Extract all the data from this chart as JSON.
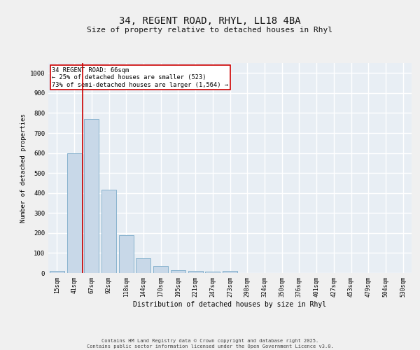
{
  "title_line1": "34, REGENT ROAD, RHYL, LL18 4BA",
  "title_line2": "Size of property relative to detached houses in Rhyl",
  "xlabel": "Distribution of detached houses by size in Rhyl",
  "ylabel": "Number of detached properties",
  "categories": [
    "15sqm",
    "41sqm",
    "67sqm",
    "92sqm",
    "118sqm",
    "144sqm",
    "170sqm",
    "195sqm",
    "221sqm",
    "247sqm",
    "273sqm",
    "298sqm",
    "324sqm",
    "350sqm",
    "376sqm",
    "401sqm",
    "427sqm",
    "453sqm",
    "479sqm",
    "504sqm",
    "530sqm"
  ],
  "values": [
    10,
    600,
    770,
    415,
    190,
    75,
    35,
    15,
    12,
    8,
    12,
    0,
    0,
    0,
    0,
    0,
    0,
    0,
    0,
    0,
    0
  ],
  "bar_color": "#c8d8e8",
  "bar_edge_color": "#7aaac8",
  "red_line_x": 1.5,
  "red_line_label": "34 REGENT ROAD: 66sqm",
  "pct_smaller": "← 25% of detached houses are smaller (523)",
  "pct_larger": "73% of semi-detached houses are larger (1,564) →",
  "annotation_box_color": "#cc0000",
  "ylim": [
    0,
    1050
  ],
  "yticks": [
    0,
    100,
    200,
    300,
    400,
    500,
    600,
    700,
    800,
    900,
    1000
  ],
  "background_color": "#e8eef4",
  "grid_color": "#ffffff",
  "footer_line1": "Contains HM Land Registry data © Crown copyright and database right 2025.",
  "footer_line2": "Contains public sector information licensed under the Open Government Licence v3.0."
}
